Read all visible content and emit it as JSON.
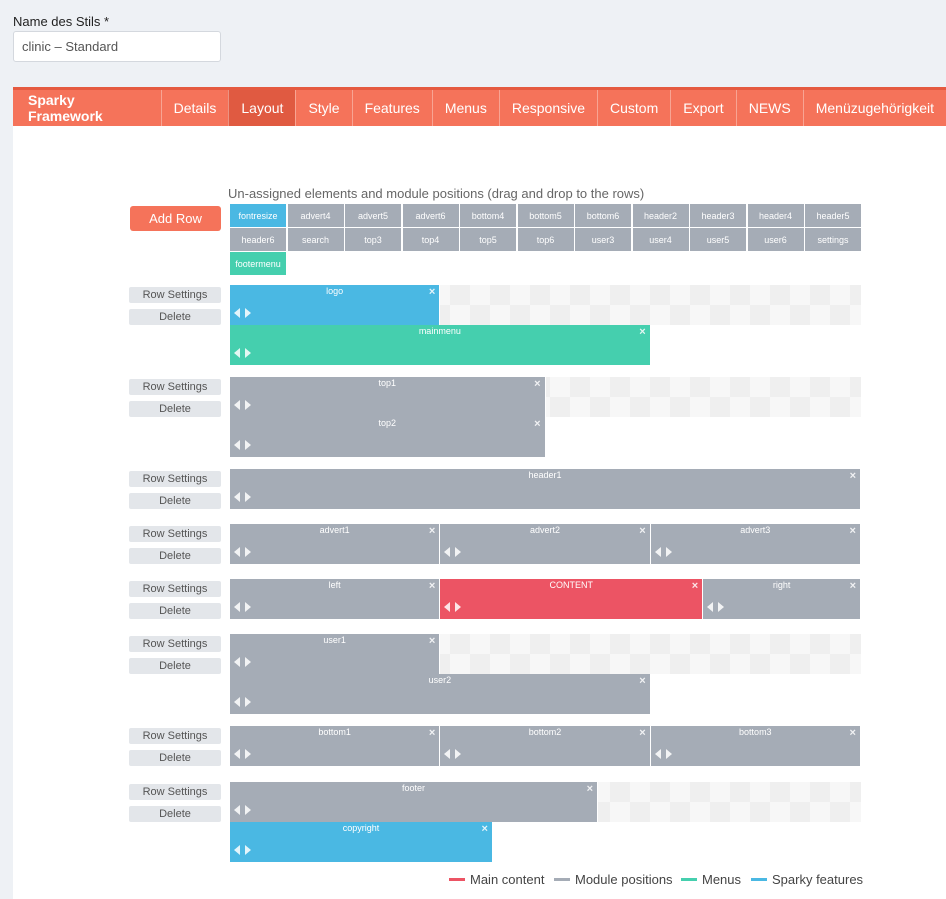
{
  "style_name": {
    "label": "Name des Stils *",
    "value": "clinic – Standard"
  },
  "nav": {
    "brand": "Sparky Framework",
    "tabs": [
      "Details",
      "Layout",
      "Style",
      "Features",
      "Menus",
      "Responsive",
      "Custom",
      "Export",
      "NEWS",
      "Menüzugehörigkeit"
    ],
    "active_tab": "Layout"
  },
  "layout": {
    "unassigned_title": "Un-assigned elements and module positions (drag and drop to the rows)",
    "add_row_label": "Add Row",
    "unassigned": [
      {
        "name": "fontresize",
        "type": "feature"
      },
      {
        "name": "advert4",
        "type": "module"
      },
      {
        "name": "advert5",
        "type": "module"
      },
      {
        "name": "advert6",
        "type": "module"
      },
      {
        "name": "bottom4",
        "type": "module"
      },
      {
        "name": "bottom5",
        "type": "module"
      },
      {
        "name": "bottom6",
        "type": "module"
      },
      {
        "name": "header2",
        "type": "module"
      },
      {
        "name": "header3",
        "type": "module"
      },
      {
        "name": "header4",
        "type": "module"
      },
      {
        "name": "header5",
        "type": "module"
      },
      {
        "name": "header6",
        "type": "module"
      },
      {
        "name": "search",
        "type": "module"
      },
      {
        "name": "top3",
        "type": "module"
      },
      {
        "name": "top4",
        "type": "module"
      },
      {
        "name": "top5",
        "type": "module"
      },
      {
        "name": "top6",
        "type": "module"
      },
      {
        "name": "user3",
        "type": "module"
      },
      {
        "name": "user4",
        "type": "module"
      },
      {
        "name": "user5",
        "type": "module"
      },
      {
        "name": "user6",
        "type": "module"
      },
      {
        "name": "settings",
        "type": "module"
      },
      {
        "name": "footermenu",
        "type": "menu"
      }
    ],
    "row_settings_label": "Row Settings",
    "delete_label": "Delete",
    "rows": [
      {
        "lines": [
          [
            {
              "name": "logo",
              "type": "feature",
              "span": 4
            }
          ],
          [
            {
              "name": "mainmenu",
              "type": "menu",
              "span": 8
            }
          ]
        ]
      },
      {
        "lines": [
          [
            {
              "name": "top1",
              "type": "module",
              "span": 6
            }
          ],
          [
            {
              "name": "top2",
              "type": "module",
              "span": 6
            }
          ]
        ]
      },
      {
        "lines": [
          [
            {
              "name": "header1",
              "type": "module",
              "span": 12
            }
          ]
        ]
      },
      {
        "lines": [
          [
            {
              "name": "advert1",
              "type": "module",
              "span": 4
            },
            {
              "name": "advert2",
              "type": "module",
              "span": 4
            },
            {
              "name": "advert3",
              "type": "module",
              "span": 4
            }
          ]
        ]
      },
      {
        "lines": [
          [
            {
              "name": "left",
              "type": "module",
              "span": 4
            },
            {
              "name": "CONTENT",
              "type": "content",
              "span": 5
            },
            {
              "name": "right",
              "type": "module",
              "span": 3
            }
          ]
        ]
      },
      {
        "lines": [
          [
            {
              "name": "user1",
              "type": "module",
              "span": 4
            }
          ],
          [
            {
              "name": "user2",
              "type": "module",
              "span": 8
            }
          ]
        ]
      },
      {
        "lines": [
          [
            {
              "name": "bottom1",
              "type": "module",
              "span": 4
            },
            {
              "name": "bottom2",
              "type": "module",
              "span": 4
            },
            {
              "name": "bottom3",
              "type": "module",
              "span": 4
            }
          ]
        ]
      },
      {
        "lines": [
          [
            {
              "name": "footer",
              "type": "module",
              "span": 7
            }
          ],
          [
            {
              "name": "copyright",
              "type": "feature",
              "span": 5
            }
          ]
        ]
      }
    ]
  },
  "legend": [
    {
      "label": "Main content",
      "color": "#ec5464"
    },
    {
      "label": "Module positions",
      "color": "#a5acb6"
    },
    {
      "label": "Menus",
      "color": "#45cfae"
    },
    {
      "label": "Sparky features",
      "color": "#4ab8e3"
    }
  ]
}
